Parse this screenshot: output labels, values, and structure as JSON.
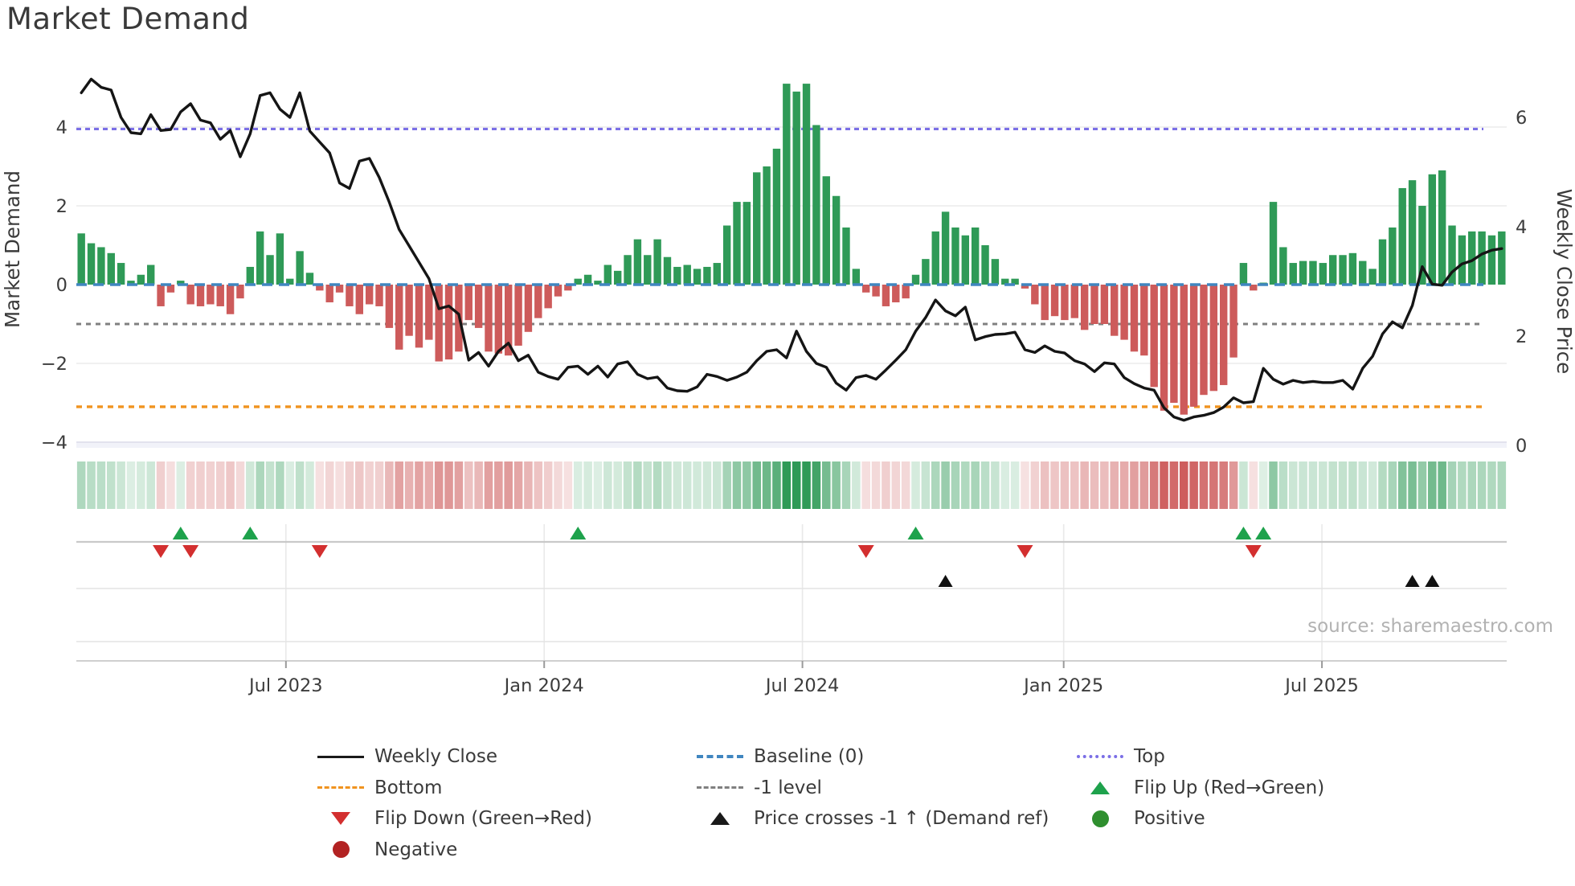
{
  "title": "Market Demand",
  "source": "source: sharemaestro.com",
  "axes": {
    "left_label": "Market Demand",
    "right_label": "Weekly Close Price",
    "left_ticks": [
      {
        "v": 4,
        "label": "4"
      },
      {
        "v": 2,
        "label": "2"
      },
      {
        "v": 0,
        "label": "0"
      },
      {
        "v": -2,
        "label": "−2"
      },
      {
        "v": -4,
        "label": "−4"
      }
    ],
    "right_ticks": [
      {
        "v": 6,
        "label": "6"
      },
      {
        "v": 4,
        "label": "4"
      },
      {
        "v": 2,
        "label": "2"
      },
      {
        "v": 0,
        "label": "0"
      }
    ],
    "x_ticks": [
      {
        "pos": 20.6,
        "label": "Jul 2023"
      },
      {
        "pos": 46.6,
        "label": "Jan 2024"
      },
      {
        "pos": 72.6,
        "label": "Jul 2024"
      },
      {
        "pos": 98.9,
        "label": "Jan 2025"
      },
      {
        "pos": 124.9,
        "label": "Jul 2025"
      }
    ]
  },
  "chart_data": {
    "type": "bar+line",
    "n_weeks": 144,
    "series": [
      {
        "name": "Market Demand",
        "type": "bar",
        "axis": "left",
        "positive_color": "#2f9a57",
        "negative_color": "#cd5b5b",
        "values": [
          1.3,
          1.05,
          0.95,
          0.8,
          0.55,
          0.1,
          0.25,
          0.5,
          -0.55,
          -0.2,
          0.1,
          -0.5,
          -0.55,
          -0.5,
          -0.55,
          -0.75,
          -0.35,
          0.45,
          1.35,
          0.75,
          1.3,
          0.15,
          0.85,
          0.3,
          -0.15,
          -0.45,
          -0.2,
          -0.55,
          -0.75,
          -0.5,
          -0.55,
          -1.1,
          -1.65,
          -1.3,
          -1.6,
          -1.4,
          -1.95,
          -1.9,
          -1.7,
          -0.9,
          -1.1,
          -1.7,
          -1.75,
          -1.8,
          -1.55,
          -1.2,
          -0.85,
          -0.6,
          -0.3,
          -0.15,
          0.15,
          0.25,
          0.1,
          0.5,
          0.35,
          0.75,
          1.15,
          0.75,
          1.15,
          0.7,
          0.45,
          0.5,
          0.4,
          0.45,
          0.55,
          1.5,
          2.1,
          2.1,
          2.85,
          3.0,
          3.45,
          5.1,
          4.9,
          5.1,
          4.05,
          2.75,
          2.25,
          1.45,
          0.4,
          -0.2,
          -0.3,
          -0.55,
          -0.45,
          -0.35,
          0.25,
          0.65,
          1.35,
          1.85,
          1.45,
          1.25,
          1.45,
          1.0,
          0.65,
          0.15,
          0.15,
          -0.1,
          -0.5,
          -0.9,
          -0.8,
          -0.9,
          -0.85,
          -1.15,
          -1.0,
          -1.0,
          -1.3,
          -1.4,
          -1.7,
          -1.8,
          -2.6,
          -3.2,
          -3.0,
          -3.3,
          -3.1,
          -2.8,
          -2.7,
          -2.55,
          -1.85,
          0.55,
          -0.15,
          0.05,
          2.1,
          0.95,
          0.55,
          0.6,
          0.6,
          0.55,
          0.75,
          0.75,
          0.8,
          0.6,
          0.4,
          1.15,
          1.45,
          2.45,
          2.65,
          2.0,
          2.8,
          2.9,
          1.5,
          1.25,
          1.35,
          1.35,
          1.25,
          1.35
        ]
      },
      {
        "name": "Weekly Close",
        "type": "line",
        "axis": "right",
        "color": "#151515",
        "values": [
          6.45,
          6.7,
          6.55,
          6.5,
          6.0,
          5.72,
          5.7,
          6.05,
          5.76,
          5.78,
          6.1,
          6.25,
          5.95,
          5.9,
          5.6,
          5.76,
          5.28,
          5.7,
          6.4,
          6.45,
          6.15,
          6.0,
          6.45,
          5.75,
          5.55,
          5.35,
          4.8,
          4.7,
          5.2,
          5.25,
          4.9,
          4.45,
          3.95,
          3.65,
          3.35,
          3.05,
          2.5,
          2.55,
          2.4,
          1.56,
          1.7,
          1.45,
          1.72,
          1.87,
          1.55,
          1.65,
          1.34,
          1.26,
          1.21,
          1.43,
          1.45,
          1.3,
          1.45,
          1.25,
          1.49,
          1.53,
          1.3,
          1.22,
          1.25,
          1.05,
          1.0,
          0.99,
          1.07,
          1.3,
          1.26,
          1.19,
          1.25,
          1.34,
          1.55,
          1.72,
          1.75,
          1.6,
          2.09,
          1.72,
          1.5,
          1.43,
          1.14,
          1.01,
          1.24,
          1.28,
          1.21,
          1.38,
          1.56,
          1.75,
          2.09,
          2.34,
          2.66,
          2.46,
          2.37,
          2.53,
          1.93,
          1.99,
          2.03,
          2.04,
          2.07,
          1.75,
          1.7,
          1.82,
          1.72,
          1.69,
          1.55,
          1.49,
          1.35,
          1.51,
          1.49,
          1.24,
          1.13,
          1.05,
          1.01,
          0.69,
          0.52,
          0.46,
          0.52,
          0.55,
          0.6,
          0.7,
          0.87,
          0.78,
          0.8,
          1.41,
          1.21,
          1.12,
          1.19,
          1.15,
          1.17,
          1.15,
          1.15,
          1.19,
          1.03,
          1.41,
          1.63,
          2.04,
          2.26,
          2.15,
          2.56,
          3.27,
          2.95,
          2.93,
          3.17,
          3.32,
          3.38,
          3.5,
          3.57,
          3.6
        ]
      }
    ],
    "ref_lines": {
      "top": {
        "value": 3.95,
        "axis": "left",
        "label": "Top",
        "color": "#7b6fe6",
        "style": "dotted"
      },
      "baseline": {
        "value": 0,
        "axis": "left",
        "label": "Baseline (0)",
        "color": "#4086c0",
        "style": "dashed"
      },
      "minus_one": {
        "value": -1,
        "axis": "left",
        "label": "-1 level",
        "color": "#808080",
        "style": "dashed"
      },
      "bottom": {
        "value": -3.1,
        "axis": "left",
        "label": "Bottom",
        "color": "#f0931f",
        "style": "dotted"
      }
    },
    "heatmap": {
      "description": "color strip derived from Market Demand weekly values",
      "positive_color": "#2f9a57",
      "negative_color": "#cd5b5b"
    },
    "markers": {
      "flip_up": {
        "label": "Flip Up (Red→Green)",
        "weeks": [
          10,
          17,
          50,
          84,
          117,
          119
        ],
        "color": "#1ea24c"
      },
      "flip_down": {
        "label": "Flip Down (Green→Red)",
        "weeks": [
          8,
          11,
          24,
          79,
          95,
          118
        ],
        "color": "#d32f2f"
      },
      "price_cross_up": {
        "label": "Price crosses -1 ↑ (Demand ref)",
        "weeks": [
          87,
          134,
          136
        ],
        "color": "#111111"
      }
    },
    "ylim_left": [
      -4.35,
      5.5
    ],
    "ylim_right": [
      0,
      7.0
    ],
    "grid": true,
    "legend_position": "bottom"
  },
  "legend": {
    "columns": [
      [
        {
          "label": "Weekly Close",
          "swatch": "line"
        },
        {
          "label": "Bottom",
          "swatch": "dash-orange"
        },
        {
          "label": "Flip Down (Green→Red)",
          "swatch": "tri-down"
        },
        {
          "label": "Negative",
          "swatch": "circle-red"
        }
      ],
      [
        {
          "label": "Baseline (0)",
          "swatch": "dash-blue"
        },
        {
          "label": "-1 level",
          "swatch": "dash-gray"
        },
        {
          "label": "Price crosses -1 ↑ (Demand ref)",
          "swatch": "tri-up-black"
        }
      ],
      [
        {
          "label": "Top",
          "swatch": "dot-purple"
        },
        {
          "label": "Flip Up (Red→Green)",
          "swatch": "tri-up-green"
        },
        {
          "label": "Positive",
          "swatch": "circle-green"
        }
      ]
    ]
  }
}
